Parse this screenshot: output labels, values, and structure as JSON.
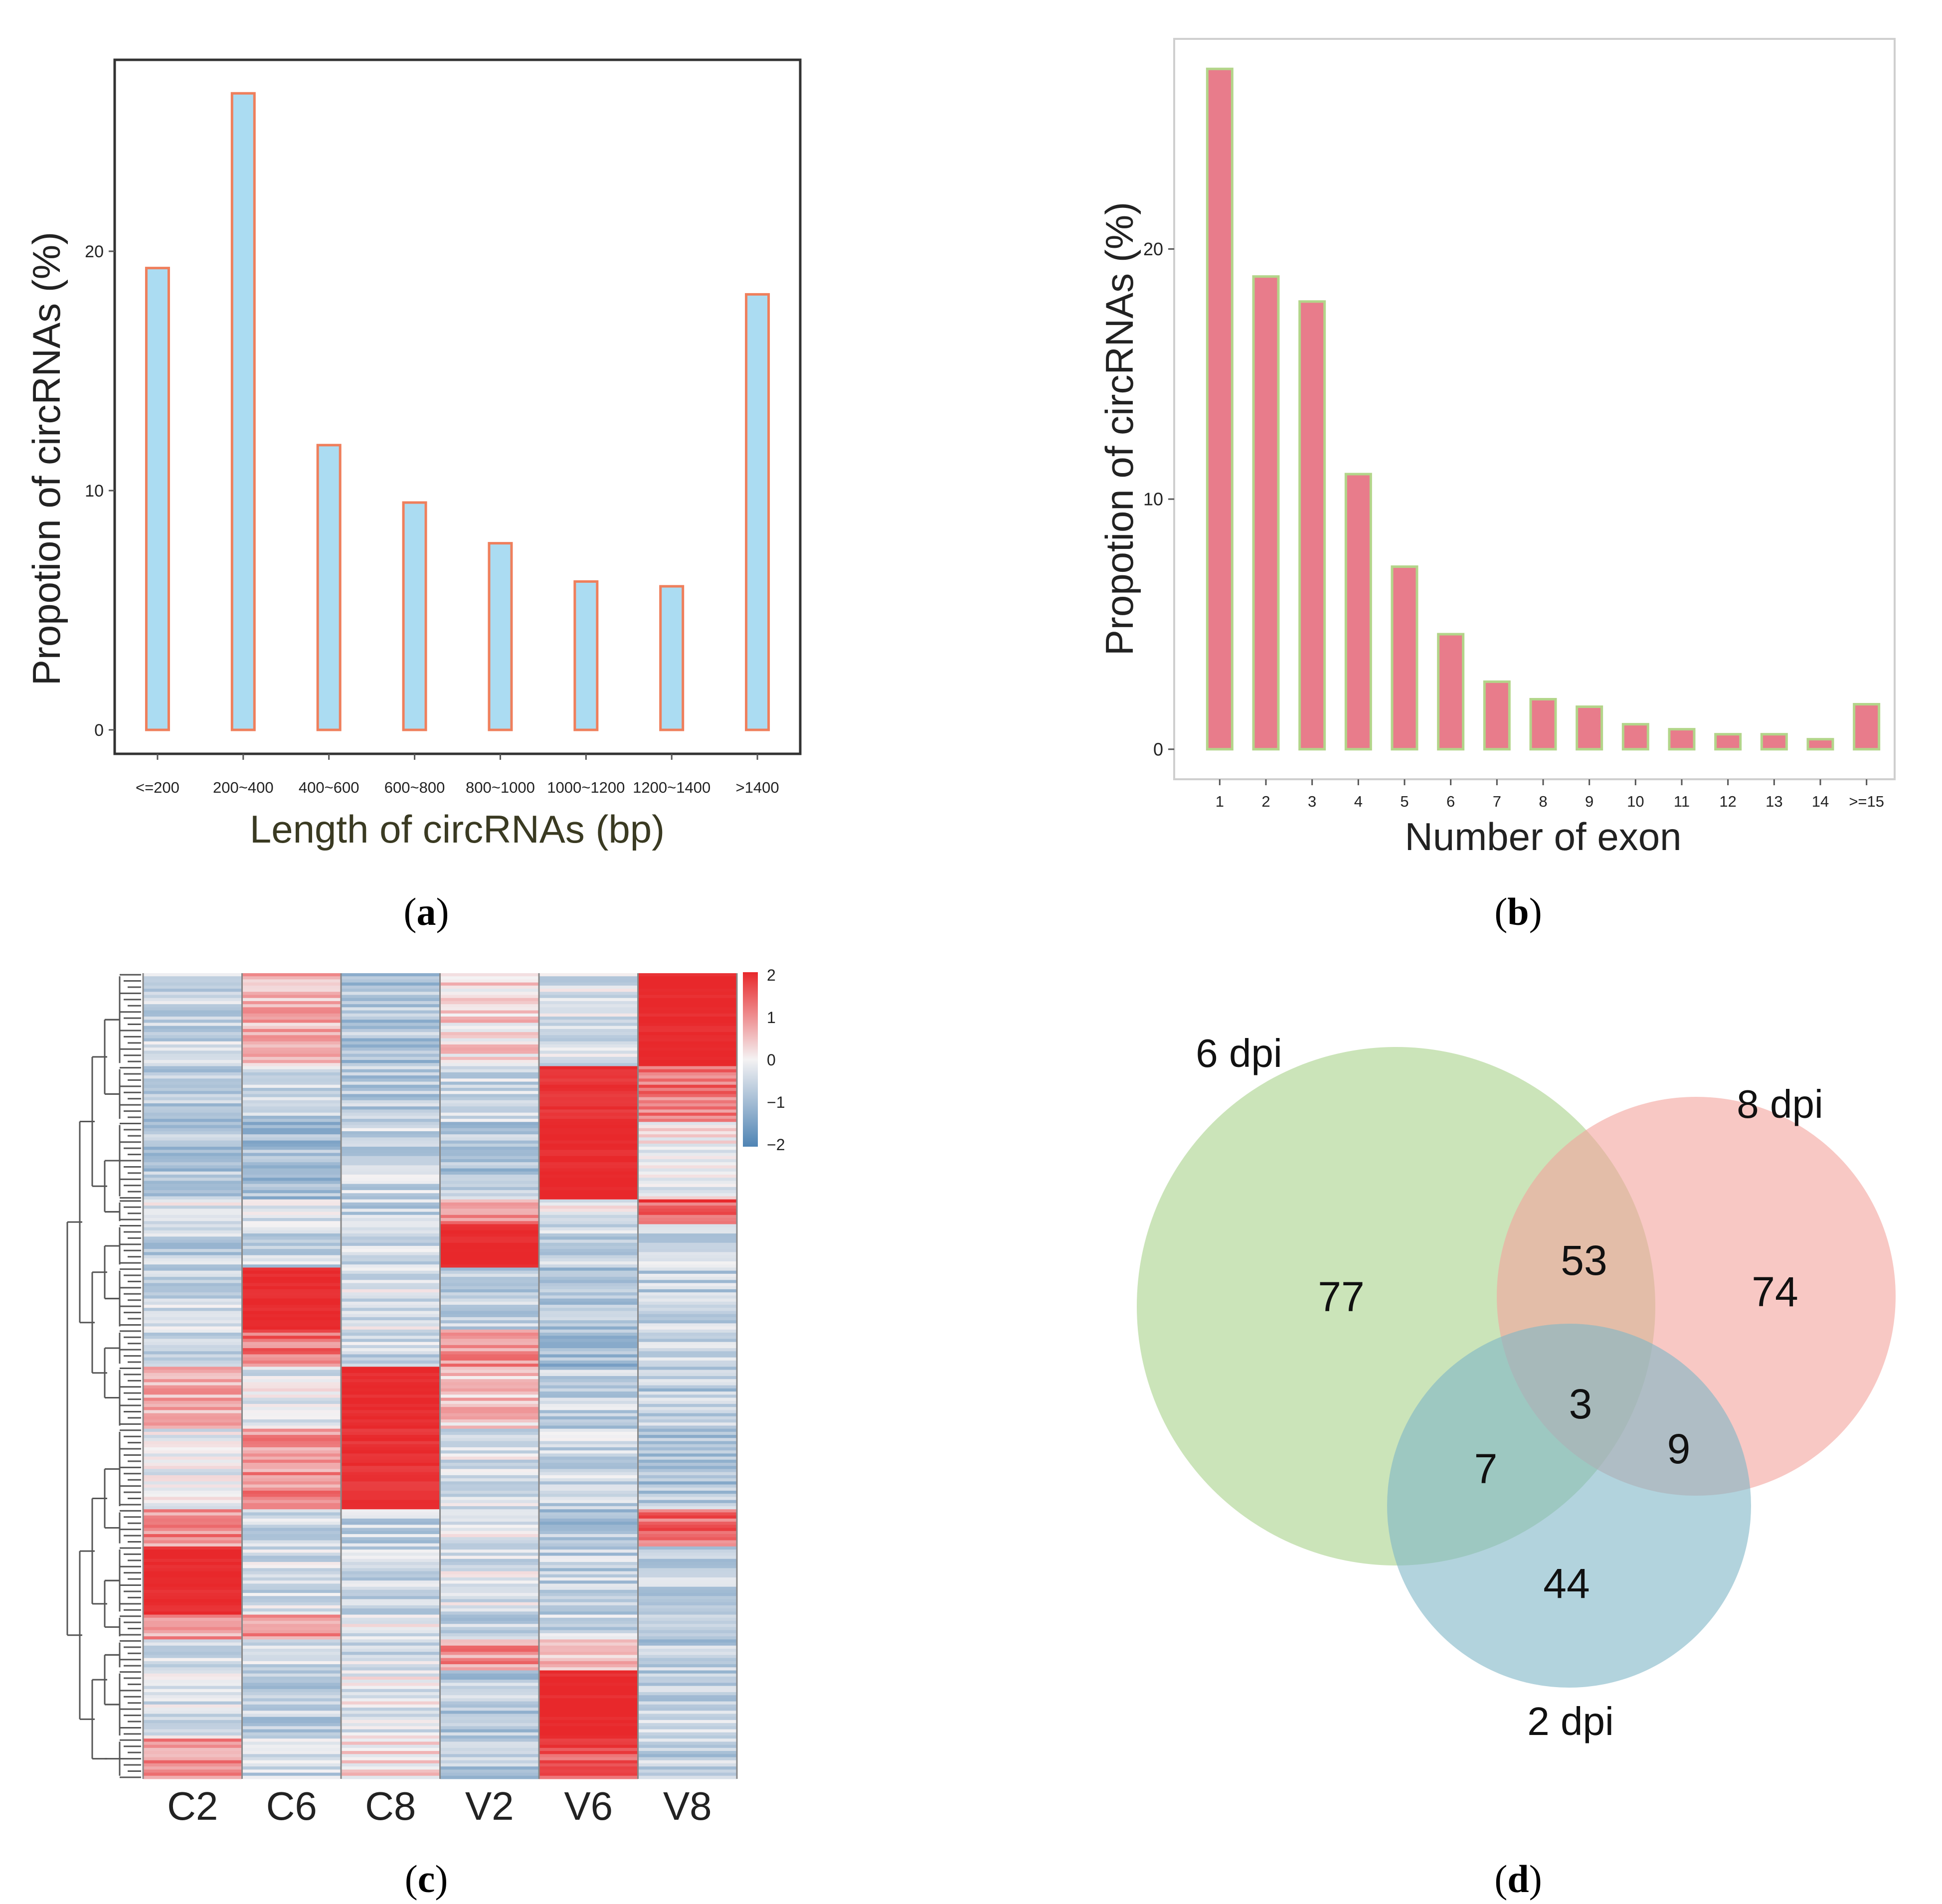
{
  "colors": {
    "a_fill": "#abdcf2",
    "a_stroke": "#ef7f5c",
    "b_fill": "#e87c8b",
    "b_stroke": "#b3d58a",
    "heat_high": "#e8282b",
    "heat_mid": "#f4f2f3",
    "heat_low": "#4f84b4",
    "venn_6dpi": "#a9d28a",
    "venn_8dpi": "#f3a49d",
    "venn_2dpi": "#7fb5c6",
    "axis_label_a": "#3a3a22"
  },
  "chart_data": [
    {
      "panel": "a",
      "type": "bar",
      "caption_paren_open": "(",
      "caption_letter": "a",
      "caption_paren_close": ")",
      "title": "",
      "xlabel": "Length of circRNAs (bp)",
      "ylabel": "Propotion of circRNAs (%)",
      "categories": [
        "<=200",
        "200~400",
        "400~600",
        "600~800",
        "800~1000",
        "1000~1200",
        "1200~1400",
        ">1400"
      ],
      "values": [
        19.3,
        26.6,
        11.9,
        9.5,
        7.8,
        6.2,
        6.0,
        18.2
      ],
      "yticks": [
        0,
        10,
        20
      ],
      "ylim": [
        -1,
        28
      ],
      "grid": false
    },
    {
      "panel": "b",
      "type": "bar",
      "caption_paren_open": "(",
      "caption_letter": "b",
      "caption_paren_close": ")",
      "title": "",
      "xlabel": "Number of exon",
      "ylabel": "Propotion of circRNAs (%)",
      "categories": [
        "1",
        "2",
        "3",
        "4",
        "5",
        "6",
        "7",
        "8",
        "9",
        "10",
        "11",
        "12",
        "13",
        "14",
        ">=15"
      ],
      "values": [
        27.2,
        18.9,
        17.9,
        11.0,
        7.3,
        4.6,
        2.7,
        2.0,
        1.7,
        1.0,
        0.8,
        0.6,
        0.6,
        0.4,
        1.8
      ],
      "yticks": [
        0,
        10,
        20
      ],
      "ylim": [
        -1.2,
        28.4
      ],
      "grid": false
    },
    {
      "panel": "c",
      "type": "heatmap",
      "caption_paren_open": "(",
      "caption_letter": "c",
      "caption_paren_close": ")",
      "title": "",
      "xlabel": "",
      "ylabel": "",
      "columns": [
        "C2",
        "C6",
        "C8",
        "V2",
        "V6",
        "V8"
      ],
      "legend_ticks": [
        2,
        1,
        0,
        -1,
        -2
      ],
      "legend_tick_labels": [
        "2",
        "1",
        "0",
        "−1",
        "−2"
      ],
      "value_range": [
        -2,
        2
      ],
      "row_count": 260,
      "cluster_pattern": [
        {
          "rows": 30,
          "values": [
            -0.5,
            0.6,
            -0.8,
            0.3,
            -0.4,
            2.0
          ]
        },
        {
          "rows": 18,
          "values": [
            -0.7,
            -0.6,
            -0.7,
            -0.5,
            1.9,
            1.2
          ]
        },
        {
          "rows": 25,
          "values": [
            -0.8,
            -0.9,
            -0.5,
            -0.8,
            2.0,
            0.0
          ]
        },
        {
          "rows": 8,
          "values": [
            -0.3,
            -0.4,
            -0.6,
            0.9,
            -0.2,
            1.5
          ]
        },
        {
          "rows": 14,
          "values": [
            -0.6,
            -0.5,
            -0.4,
            2.0,
            -0.6,
            -0.5
          ]
        },
        {
          "rows": 20,
          "values": [
            -0.5,
            2.0,
            -0.3,
            -0.6,
            -0.8,
            -0.6
          ]
        },
        {
          "rows": 12,
          "values": [
            -0.4,
            1.2,
            -0.5,
            1.0,
            -1.0,
            -0.6
          ]
        },
        {
          "rows": 20,
          "values": [
            0.6,
            -0.2,
            2.0,
            0.4,
            -0.6,
            -0.7
          ]
        },
        {
          "rows": 26,
          "values": [
            -0.2,
            1.0,
            1.9,
            -0.3,
            -0.5,
            -0.8
          ]
        },
        {
          "rows": 12,
          "values": [
            1.0,
            -0.5,
            -0.6,
            -0.3,
            -0.8,
            1.4
          ]
        },
        {
          "rows": 22,
          "values": [
            2.0,
            -0.4,
            -0.5,
            -0.3,
            -0.6,
            -0.7
          ]
        },
        {
          "rows": 8,
          "values": [
            0.8,
            1.0,
            -0.2,
            -0.6,
            -0.5,
            -0.5
          ]
        },
        {
          "rows": 10,
          "values": [
            -0.3,
            -0.5,
            -0.4,
            0.9,
            0.6,
            -0.7
          ]
        },
        {
          "rows": 22,
          "values": [
            -0.4,
            -0.6,
            -0.2,
            -0.7,
            2.0,
            -0.6
          ]
        },
        {
          "rows": 13,
          "values": [
            1.0,
            -0.5,
            0.2,
            -0.7,
            1.6,
            -0.6
          ]
        }
      ]
    },
    {
      "panel": "d",
      "type": "venn",
      "caption_paren_open": "(",
      "caption_letter": "d",
      "caption_paren_close": ")",
      "title": "",
      "xlabel": "",
      "ylabel": "",
      "sets": [
        "6 dpi",
        "8 dpi",
        "2 dpi"
      ],
      "regions": {
        "only_6dpi": 77,
        "only_8dpi": 74,
        "only_2dpi": 44,
        "6dpi_8dpi": 53,
        "6dpi_2dpi": 7,
        "8dpi_2dpi": 9,
        "all_three": 3
      }
    }
  ]
}
